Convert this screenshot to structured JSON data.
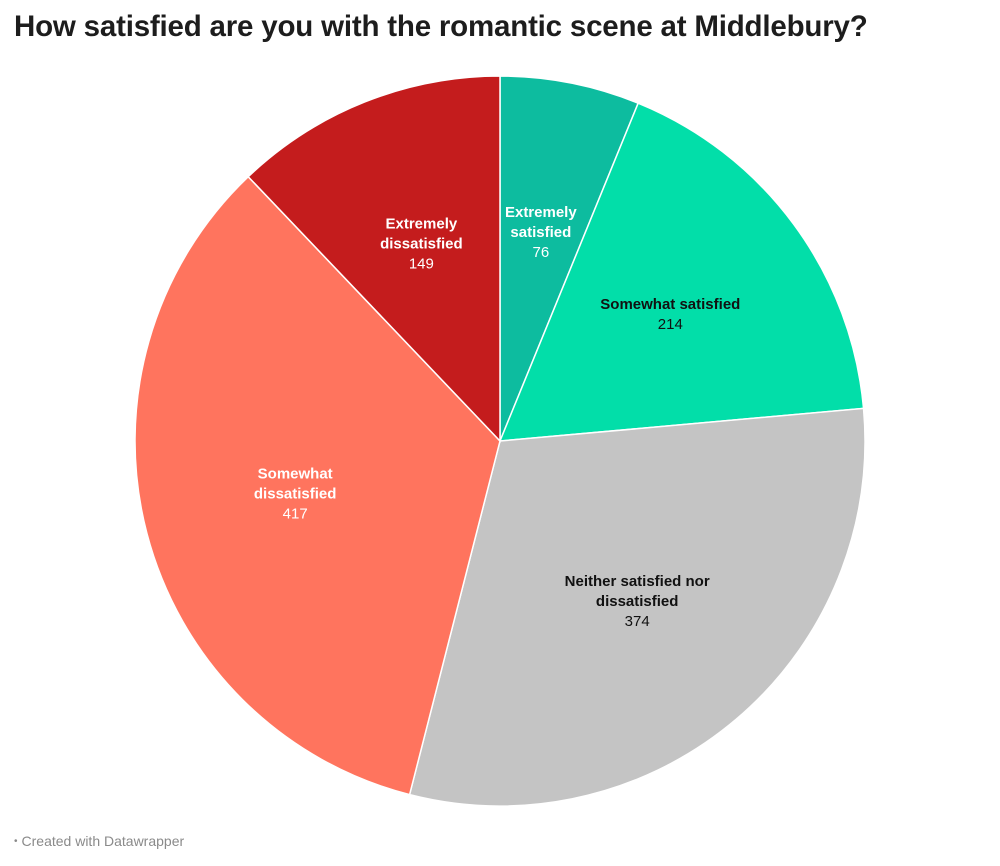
{
  "chart_data": {
    "type": "pie",
    "title": "How satisfied are you with the romantic scene at Middlebury?",
    "slices": [
      {
        "label_lines": [
          "Extremely",
          "satisfied"
        ],
        "value": 76,
        "color": "#0dbc9f",
        "label_color": "#ffffff"
      },
      {
        "label_lines": [
          "Somewhat satisfied"
        ],
        "value": 214,
        "color": "#02dea9",
        "label_color": "#111111"
      },
      {
        "label_lines": [
          "Neither satisfied nor",
          "dissatisfied"
        ],
        "value": 374,
        "color": "#c4c4c4",
        "label_color": "#111111"
      },
      {
        "label_lines": [
          "Somewhat",
          "dissatisfied"
        ],
        "value": 417,
        "color": "#ff745e",
        "label_color": "#ffffff"
      },
      {
        "label_lines": [
          "Extremely",
          "dissatisfied"
        ],
        "value": 149,
        "color": "#c41c1d",
        "label_color": "#ffffff"
      }
    ],
    "start_angle_deg": 0,
    "direction": "clockwise"
  },
  "footer": {
    "text": "Created with Datawrapper"
  }
}
